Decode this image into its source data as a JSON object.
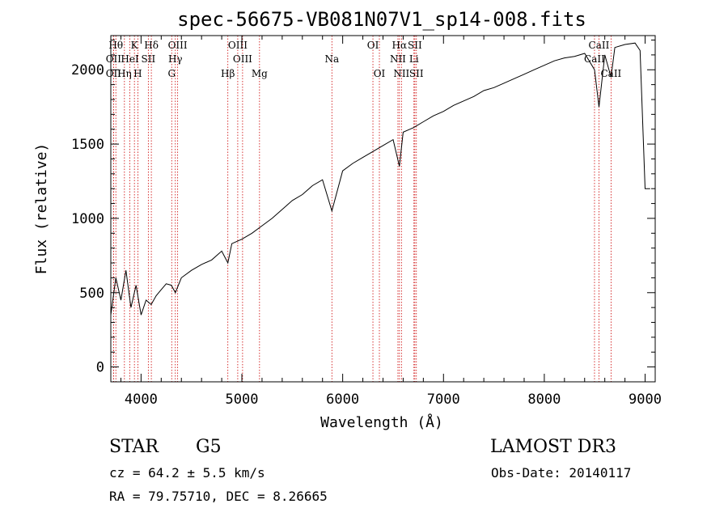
{
  "chart_data": {
    "type": "line",
    "title": "spec-56675-VB081N07V1_sp14-008.fits",
    "xlabel": "Wavelength (Å)",
    "ylabel": "Flux (relative)",
    "xlim": [
      3700,
      9100
    ],
    "ylim": [
      -100,
      2230
    ],
    "xticks": [
      4000,
      5000,
      6000,
      7000,
      8000,
      9000
    ],
    "yticks": [
      0,
      500,
      1000,
      1500,
      2000
    ],
    "series": [
      {
        "name": "spectrum",
        "x": [
          3700,
          3750,
          3800,
          3850,
          3900,
          3950,
          4000,
          4050,
          4100,
          4150,
          4200,
          4250,
          4300,
          4340,
          4400,
          4500,
          4600,
          4700,
          4800,
          4861,
          4900,
          5000,
          5100,
          5200,
          5300,
          5400,
          5500,
          5600,
          5700,
          5800,
          5893,
          6000,
          6100,
          6200,
          6300,
          6400,
          6500,
          6563,
          6600,
          6700,
          6800,
          6900,
          7000,
          7100,
          7200,
          7300,
          7400,
          7500,
          7600,
          7700,
          7800,
          7900,
          8000,
          8100,
          8200,
          8300,
          8400,
          8498,
          8542,
          8600,
          8662,
          8700,
          8800,
          8900,
          8950,
          9000,
          9050
        ],
        "y": [
          350,
          600,
          450,
          650,
          400,
          550,
          350,
          450,
          420,
          480,
          520,
          560,
          550,
          500,
          600,
          650,
          690,
          720,
          780,
          700,
          830,
          860,
          900,
          950,
          1000,
          1060,
          1120,
          1160,
          1220,
          1260,
          1050,
          1320,
          1370,
          1410,
          1450,
          1490,
          1530,
          1350,
          1580,
          1610,
          1650,
          1690,
          1720,
          1760,
          1790,
          1820,
          1860,
          1880,
          1910,
          1940,
          1970,
          2000,
          2030,
          2060,
          2080,
          2090,
          2110,
          2000,
          1750,
          2100,
          1950,
          2150,
          2170,
          2180,
          2130,
          1200,
          1200
        ]
      }
    ],
    "spectral_lines": [
      {
        "wl": 3750,
        "label": "Hθ",
        "row": 0
      },
      {
        "wl": 3727,
        "label": "OII",
        "row": 1
      },
      {
        "wl": 3727,
        "label": "OII",
        "row": 2
      },
      {
        "wl": 3835,
        "label": "Hη",
        "row": 2
      },
      {
        "wl": 3889,
        "label": "HeI",
        "row": 1
      },
      {
        "wl": 3934,
        "label": "K",
        "row": 0
      },
      {
        "wl": 3968,
        "label": "H",
        "row": 2
      },
      {
        "wl": 4072,
        "label": "SII",
        "row": 1
      },
      {
        "wl": 4102,
        "label": "Hδ",
        "row": 0
      },
      {
        "wl": 4304,
        "label": "G",
        "row": 2
      },
      {
        "wl": 4340,
        "label": "Hγ",
        "row": 1
      },
      {
        "wl": 4363,
        "label": "OIII",
        "row": 0
      },
      {
        "wl": 4861,
        "label": "Hβ",
        "row": 2
      },
      {
        "wl": 4959,
        "label": "OIII",
        "row": 0
      },
      {
        "wl": 5007,
        "label": "OIII",
        "row": 1
      },
      {
        "wl": 5175,
        "label": "Mg",
        "row": 2
      },
      {
        "wl": 5893,
        "label": "Na",
        "row": 1
      },
      {
        "wl": 6300,
        "label": "OI",
        "row": 0
      },
      {
        "wl": 6364,
        "label": "OI",
        "row": 2
      },
      {
        "wl": 6548,
        "label": "NII",
        "row": 1
      },
      {
        "wl": 6563,
        "label": "Hα",
        "row": 0
      },
      {
        "wl": 6583,
        "label": "NII",
        "row": 2
      },
      {
        "wl": 6707,
        "label": "Li",
        "row": 1
      },
      {
        "wl": 6716,
        "label": "SII",
        "row": 0
      },
      {
        "wl": 6731,
        "label": "SII",
        "row": 2
      },
      {
        "wl": 8498,
        "label": "CaII",
        "row": 1
      },
      {
        "wl": 8542,
        "label": "CaII",
        "row": 0
      },
      {
        "wl": 8662,
        "label": "CaII",
        "row": 2
      }
    ],
    "colors": {
      "line": "#000000",
      "marker": "#cc0000",
      "axes": "#000000"
    }
  },
  "info": {
    "class": "STAR",
    "subclass": "G5",
    "survey": "LAMOST DR3",
    "cz": "cz = 64.2 ± 5.5 km/s",
    "obs_date": "Obs-Date: 20140117",
    "radec": "RA =  79.75710, DEC =   8.26665"
  }
}
